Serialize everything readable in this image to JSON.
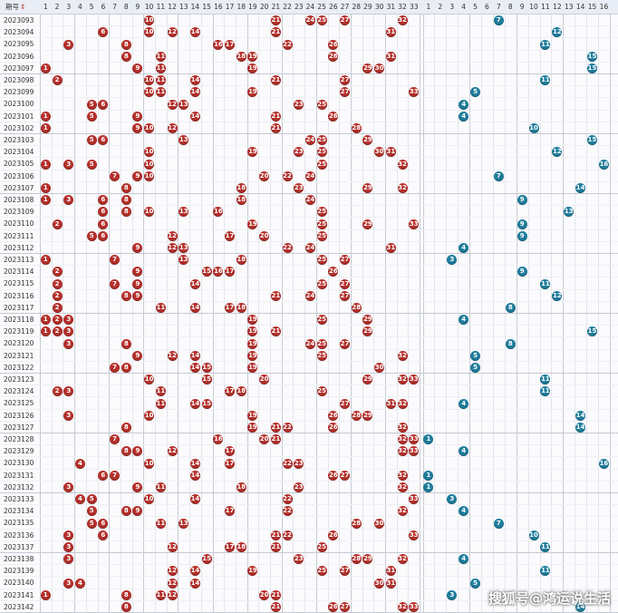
{
  "header": {
    "issue_label": "期号",
    "sort_glyph": "⇕",
    "red_numbers": [
      "1",
      "2",
      "3",
      "4",
      "5",
      "6",
      "7",
      "8",
      "9",
      "10",
      "11",
      "12",
      "13",
      "14",
      "15",
      "16",
      "17",
      "18",
      "19",
      "20",
      "21",
      "22",
      "23",
      "24",
      "25",
      "26",
      "27",
      "28",
      "29",
      "30",
      "31",
      "32",
      "33"
    ],
    "blue_numbers": [
      "1",
      "2",
      "3",
      "4",
      "5",
      "6",
      "7",
      "8",
      "9",
      "10",
      "11",
      "12",
      "13",
      "14",
      "15",
      "16"
    ]
  },
  "colors": {
    "red": "#b5302b",
    "blue": "#1f7d9c",
    "header_bg": "#e9edf5"
  },
  "chart_data": {
    "type": "table",
    "title": "",
    "draws": [
      {
        "issue": "2023093",
        "red": [
          10,
          21,
          24,
          25,
          27,
          32
        ],
        "blue": 7
      },
      {
        "issue": "2023094",
        "red": [
          6,
          10,
          12,
          14,
          21,
          31
        ],
        "blue": 12
      },
      {
        "issue": "2023095",
        "red": [
          3,
          8,
          16,
          17,
          22,
          26
        ],
        "blue": 11
      },
      {
        "issue": "2023096",
        "red": [
          8,
          11,
          18,
          19,
          26,
          31
        ],
        "blue": 15
      },
      {
        "issue": "2023097",
        "red": [
          1,
          9,
          11,
          19,
          29,
          30
        ],
        "blue": 15
      },
      {
        "issue": "2023098",
        "red": [
          2,
          10,
          11,
          14,
          21,
          27
        ],
        "blue": 11
      },
      {
        "issue": "2023099",
        "red": [
          10,
          11,
          14,
          19,
          27,
          33
        ],
        "blue": 5
      },
      {
        "issue": "2023100",
        "red": [
          5,
          6,
          12,
          13,
          23,
          25
        ],
        "blue": 4
      },
      {
        "issue": "2023101",
        "red": [
          1,
          5,
          9,
          14,
          21,
          26
        ],
        "blue": 4
      },
      {
        "issue": "2023102",
        "red": [
          1,
          9,
          10,
          12,
          21,
          28
        ],
        "blue": 10
      },
      {
        "issue": "2023103",
        "red": [
          5,
          6,
          13,
          24,
          25,
          29
        ],
        "blue": 15
      },
      {
        "issue": "2023104",
        "red": [
          10,
          19,
          23,
          25,
          30,
          31
        ],
        "blue": 12
      },
      {
        "issue": "2023105",
        "red": [
          1,
          3,
          5,
          10,
          25,
          32
        ],
        "blue": 16
      },
      {
        "issue": "2023106",
        "red": [
          7,
          9,
          10,
          20,
          22,
          24
        ],
        "blue": 7
      },
      {
        "issue": "2023107",
        "red": [
          1,
          8,
          18,
          23,
          29,
          32
        ],
        "blue": 14
      },
      {
        "issue": "2023108",
        "red": [
          1,
          3,
          6,
          8,
          18,
          24
        ],
        "blue": 9
      },
      {
        "issue": "2023109",
        "red": [
          6,
          8,
          10,
          13,
          16,
          25
        ],
        "blue": 13
      },
      {
        "issue": "2023110",
        "red": [
          2,
          6,
          19,
          25,
          29,
          33
        ],
        "blue": 9
      },
      {
        "issue": "2023111",
        "red": [
          5,
          6,
          12,
          17,
          20,
          25
        ],
        "blue": 9
      },
      {
        "issue": "2023112",
        "red": [
          9,
          12,
          13,
          22,
          24,
          31
        ],
        "blue": 4
      },
      {
        "issue": "2023113",
        "red": [
          1,
          7,
          13,
          18,
          25,
          27
        ],
        "blue": 3
      },
      {
        "issue": "2023114",
        "red": [
          2,
          9,
          15,
          16,
          17,
          26
        ],
        "blue": 9
      },
      {
        "issue": "2023115",
        "red": [
          2,
          7,
          9,
          14,
          25,
          27
        ],
        "blue": 11
      },
      {
        "issue": "2023116",
        "red": [
          2,
          8,
          9,
          21,
          24,
          27
        ],
        "blue": 12
      },
      {
        "issue": "2023117",
        "red": [
          2,
          11,
          14,
          17,
          18,
          28
        ],
        "blue": 8
      },
      {
        "issue": "2023118",
        "red": [
          1,
          2,
          3,
          19,
          25,
          29
        ],
        "blue": 4
      },
      {
        "issue": "2023119",
        "red": [
          1,
          2,
          3,
          19,
          21,
          29
        ],
        "blue": 15
      },
      {
        "issue": "2023120",
        "red": [
          3,
          8,
          19,
          24,
          25,
          27
        ],
        "blue": 8
      },
      {
        "issue": "2023121",
        "red": [
          9,
          12,
          14,
          19,
          25,
          32
        ],
        "blue": 5
      },
      {
        "issue": "2023122",
        "red": [
          7,
          8,
          14,
          15,
          19,
          30
        ],
        "blue": 5
      },
      {
        "issue": "2023123",
        "red": [
          10,
          15,
          20,
          29,
          32,
          33
        ],
        "blue": 11
      },
      {
        "issue": "2023124",
        "red": [
          2,
          3,
          11,
          17,
          18,
          25
        ],
        "blue": 11
      },
      {
        "issue": "2023125",
        "red": [
          11,
          14,
          15,
          27,
          31,
          32
        ],
        "blue": 4
      },
      {
        "issue": "2023126",
        "red": [
          3,
          10,
          19,
          26,
          28,
          29
        ],
        "blue": 14
      },
      {
        "issue": "2023127",
        "red": [
          8,
          19,
          21,
          22,
          26,
          32
        ],
        "blue": 14
      },
      {
        "issue": "2023128",
        "red": [
          7,
          16,
          20,
          21,
          33,
          32
        ],
        "blue": 1
      },
      {
        "issue": "2023129",
        "red": [
          8,
          9,
          12,
          17,
          32,
          33
        ],
        "blue": 4
      },
      {
        "issue": "2023130",
        "red": [
          4,
          10,
          14,
          17,
          22,
          23
        ],
        "blue": 16
      },
      {
        "issue": "2023131",
        "red": [
          6,
          7,
          14,
          26,
          27,
          32
        ],
        "blue": 1
      },
      {
        "issue": "2023132",
        "red": [
          3,
          9,
          11,
          18,
          23,
          32
        ],
        "blue": 1
      },
      {
        "issue": "2023133",
        "red": [
          4,
          5,
          10,
          14,
          22,
          33
        ],
        "blue": 3
      },
      {
        "issue": "2023134",
        "red": [
          5,
          8,
          9,
          17,
          22,
          32
        ],
        "blue": 4
      },
      {
        "issue": "2023135",
        "red": [
          5,
          6,
          11,
          13,
          28,
          30
        ],
        "blue": 7
      },
      {
        "issue": "2023136",
        "red": [
          3,
          6,
          21,
          22,
          26,
          33
        ],
        "blue": 10
      },
      {
        "issue": "2023137",
        "red": [
          3,
          12,
          17,
          18,
          21,
          25
        ],
        "blue": 11
      },
      {
        "issue": "2023138",
        "red": [
          3,
          15,
          23,
          28,
          29,
          32
        ],
        "blue": 4
      },
      {
        "issue": "2023139",
        "red": [
          12,
          14,
          19,
          25,
          27,
          31
        ],
        "blue": 11
      },
      {
        "issue": "2023140",
        "red": [
          3,
          4,
          12,
          14,
          30,
          31
        ],
        "blue": 5
      },
      {
        "issue": "2023141",
        "red": [
          1,
          8,
          11,
          12,
          20,
          21
        ],
        "blue": 3
      },
      {
        "issue": "2023142",
        "red": [
          8,
          21,
          26,
          27,
          33,
          32
        ],
        "blue": 14
      }
    ]
  },
  "watermark": "搜狐号@鸿运说生活"
}
